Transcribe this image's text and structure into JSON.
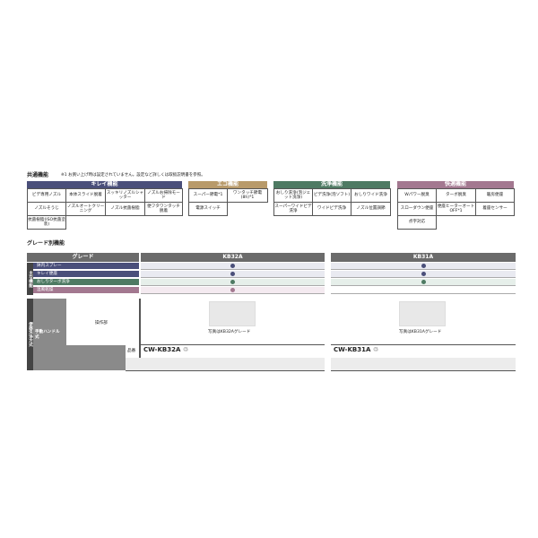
{
  "common": {
    "title": "共通機能",
    "note": "※1 お買い上げ時は設定されていません。設定など詳しくは取扱説明書を参照。"
  },
  "colors": {
    "kirei": "#4a4f7a",
    "eco": "#b89a6a",
    "senjo": "#4e7a63",
    "kaiteki": "#a37890",
    "grade_header": "#6b6b6b"
  },
  "kirei": {
    "header": "キレイ機能",
    "items": [
      "ビデ専用ノズル",
      "本体スライド脱着",
      "スッキリノズルシャッター",
      "ノズルお掃除モード",
      "ノズルそうじ",
      "ノズルオートクリーニング",
      "ノズル抗菌樹脂",
      "便フタワンタッチ脱着",
      "抗菌樹脂(ISO抗菌塗装)"
    ]
  },
  "eco": {
    "header": "エコ機能",
    "items": [
      "スーパー節電*1",
      "ワンタッチ節電(8h)*1",
      "電源スイッチ"
    ]
  },
  "senjo": {
    "header": "洗浄機能",
    "items": [
      "おしり洗浄(泡ジェット洗浄)",
      "ビデ洗浄(泡ソフト)",
      "おしりワイド洗浄",
      "スーパーワイドビデ洗浄",
      "ワイドビデ洗浄",
      "ノズル位置調節"
    ]
  },
  "kaiteki": {
    "header": "快適機能",
    "items": [
      "Wパワー脱臭",
      "ターボ脱臭",
      "暖房便座",
      "スローダウン便座",
      "便座ヒーターオートOFF*1",
      "着座センサー",
      "点字対応"
    ]
  },
  "grade": {
    "title": "グレード別機能",
    "header": "グレード",
    "models": [
      "KB32A",
      "KB31A"
    ],
    "side_label": "主な機能",
    "features": [
      {
        "name": "鉢内スプレー",
        "kb32a": true,
        "kb31a": true
      },
      {
        "name": "キレイ便座",
        "kb32a": true,
        "kb31a": true
      },
      {
        "name": "おしりターボ洗浄",
        "kb32a": true,
        "kb31a": true
      },
      {
        "name": "温風乾燥",
        "kb32a": true,
        "kb31a": false
      }
    ],
    "flush_side_label": "便器洗浄方式",
    "flush_type": "手動ハンドル式",
    "control_label": "操作部",
    "part_label": "品番",
    "photo_captions": [
      "写真はKB32Aグレード",
      "写真はKB31Aグレード"
    ],
    "part_numbers": [
      "CW-KB32A",
      "CW-KB31A"
    ]
  }
}
